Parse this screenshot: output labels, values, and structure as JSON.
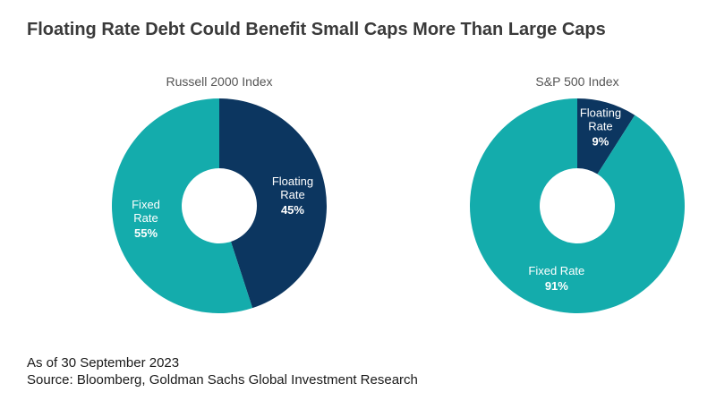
{
  "title": "Floating Rate Debt Could Benefit Small Caps More Than Large Caps",
  "footer": {
    "date_note": "As of 30 September 2023",
    "source": "Source: Bloomberg, Goldman Sachs Global Investment Research"
  },
  "colors": {
    "floating": "#0c3660",
    "fixed": "#14acac"
  },
  "chart_data": [
    {
      "type": "pie",
      "variant": "donut",
      "title": "Russell 2000 Index",
      "slices": [
        {
          "key": "floating",
          "name_lines": [
            "Floating",
            "Rate"
          ],
          "value": 45,
          "value_label": "45%"
        },
        {
          "key": "fixed",
          "name_lines": [
            "Fixed",
            "Rate"
          ],
          "value": 55,
          "value_label": "55%"
        }
      ]
    },
    {
      "type": "pie",
      "variant": "donut",
      "title": "S&P 500 Index",
      "slices": [
        {
          "key": "floating",
          "name_lines": [
            "Floating",
            "Rate"
          ],
          "value": 9,
          "value_label": "9%"
        },
        {
          "key": "fixed",
          "name_lines": [
            "Fixed Rate"
          ],
          "value": 91,
          "value_label": "91%"
        }
      ]
    }
  ]
}
